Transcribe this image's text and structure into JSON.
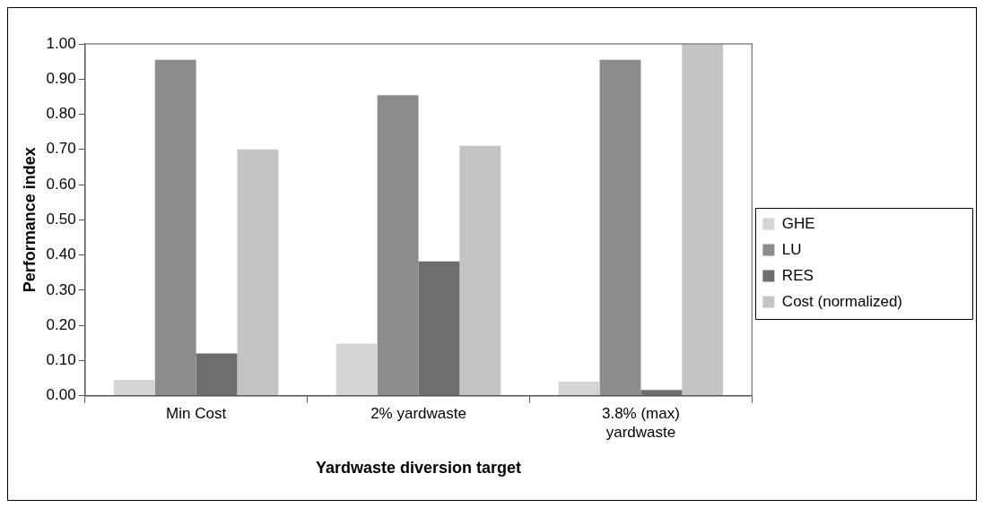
{
  "chart_data": {
    "type": "bar",
    "xlabel": "Yardwaste diversion target",
    "ylabel": "Performance index",
    "categories": [
      "Min Cost",
      "2% yardwaste",
      "3.8% (max) yardwaste"
    ],
    "series": [
      {
        "name": "GHE",
        "color": "#d4d4d4",
        "values": [
          0.045,
          0.148,
          0.04
        ]
      },
      {
        "name": "LU",
        "color": "#8c8c8c",
        "values": [
          0.955,
          0.854,
          0.955
        ]
      },
      {
        "name": "RES",
        "color": "#6e6e6e",
        "values": [
          0.12,
          0.382,
          0.016
        ]
      },
      {
        "name": "Cost (normalized)",
        "color": "#c4c4c4",
        "values": [
          0.7,
          0.71,
          1.0
        ]
      }
    ],
    "ylim": [
      0,
      1
    ],
    "yticks": [
      {
        "value": 0,
        "label": "0.00"
      },
      {
        "value": 0.1,
        "label": "0.10"
      },
      {
        "value": 0.2,
        "label": "0.20"
      },
      {
        "value": 0.3,
        "label": "0.30"
      },
      {
        "value": 0.4,
        "label": "0.40"
      },
      {
        "value": 0.5,
        "label": "0.50"
      },
      {
        "value": 0.6,
        "label": "0.60"
      },
      {
        "value": 0.7,
        "label": "0.70"
      },
      {
        "value": 0.8,
        "label": "0.80"
      },
      {
        "value": 0.9,
        "label": "0.90"
      },
      {
        "value": 1,
        "label": "1.00"
      }
    ],
    "grid": false,
    "legend": "right"
  }
}
